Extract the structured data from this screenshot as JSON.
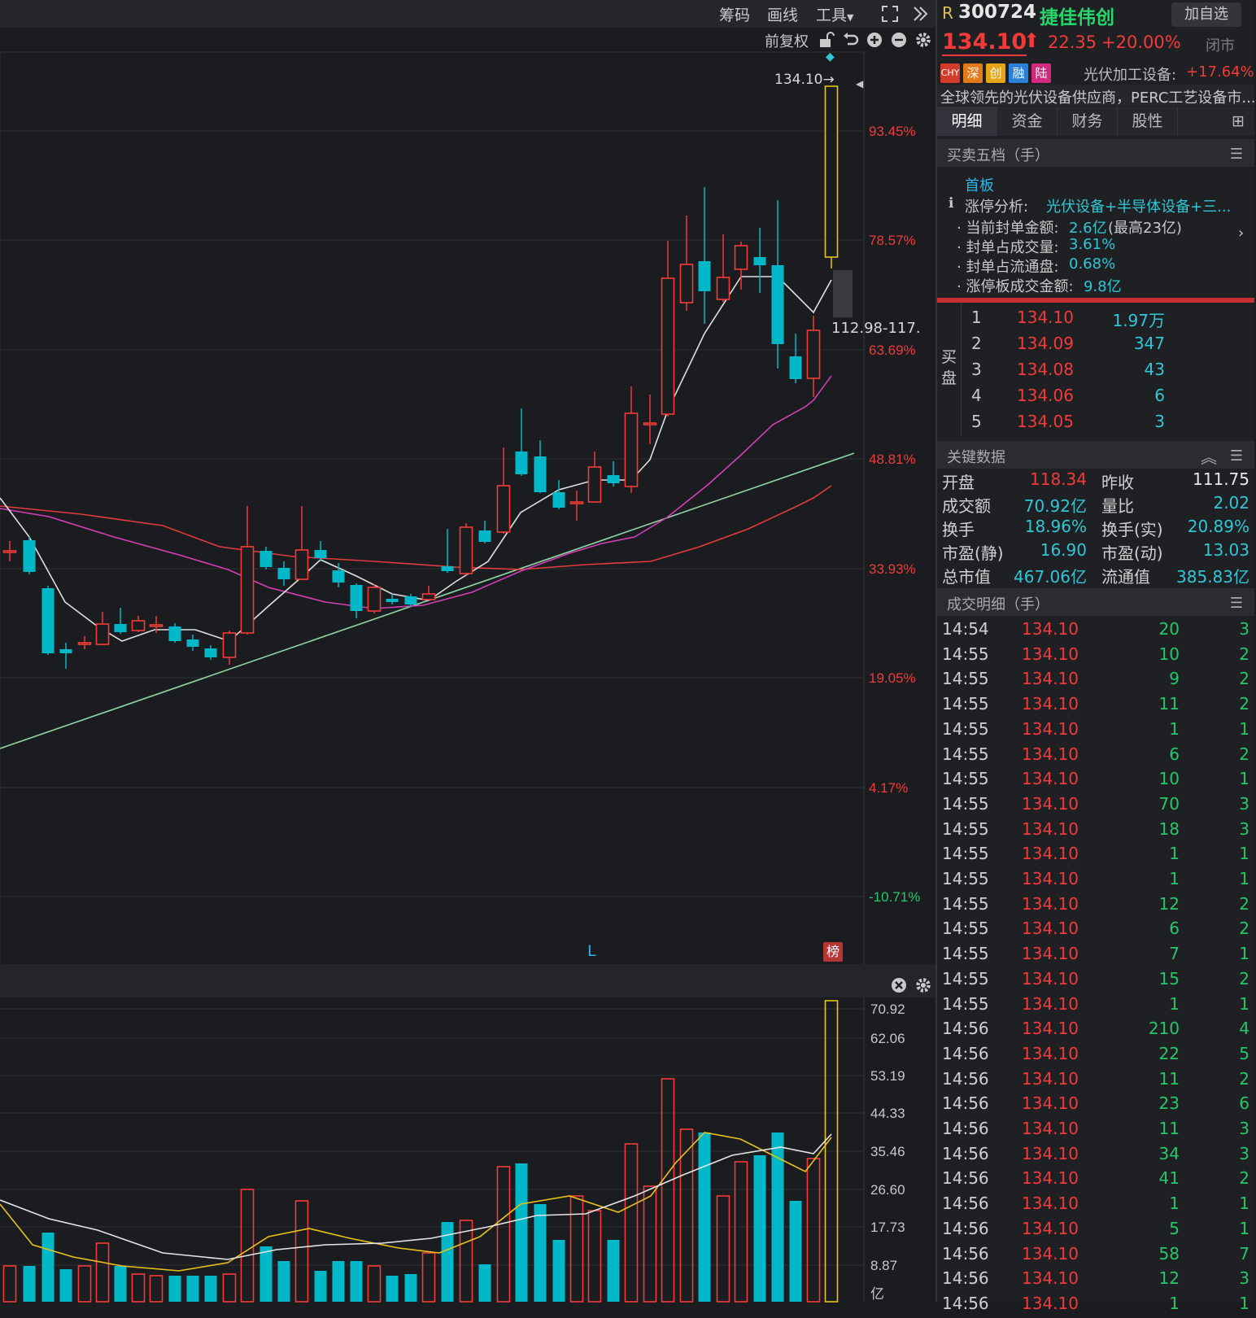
{
  "toolbar": {
    "chips": "筹码",
    "draw": "画线",
    "tools": "工具",
    "adjust": "前复权"
  },
  "chart": {
    "price_labels": [
      "93.45%",
      "78.57%",
      "63.69%",
      "48.81%",
      "33.93%",
      "19.05%",
      "4.17%",
      "-10.71%"
    ],
    "last_price_tag": "134.10→",
    "range_tag": "112.98-117.",
    "l_marker": "L",
    "bang_badge": "榜",
    "volume_labels": [
      "70.92",
      "62.06",
      "53.19",
      "44.33",
      "35.46",
      "26.60",
      "17.73",
      "8.87",
      "亿"
    ],
    "colors": {
      "up": "#f23a3a",
      "down": "#00b8c8",
      "limit_up": "#e8c21b",
      "ma5": "#e0e0e0",
      "ma10": "#d33fb5",
      "ma20": "#e23c3c",
      "trend": "#8fd6a6"
    }
  },
  "chart_data": {
    "type": "candlestick",
    "ylabels_pct": [
      "93.45%",
      "78.57%",
      "63.69%",
      "48.81%",
      "33.93%",
      "19.05%",
      "4.17%",
      "-10.71%"
    ],
    "last_close": 134.1,
    "volume_axis": [
      "70.92",
      "62.06",
      "53.19",
      "44.33",
      "35.46",
      "26.60",
      "17.73",
      "8.87"
    ],
    "volume_unit": "亿"
  },
  "quote": {
    "r_mark": "R",
    "code": "300724",
    "name": "捷佳伟创",
    "add_button": "加自选",
    "price": "134.10",
    "change": "22.35",
    "change_pct": "+20.00%",
    "market_status": "闭市",
    "badges": [
      "CHY",
      "深",
      "创",
      "融",
      "陆"
    ],
    "sector": "光伏加工设备:",
    "sector_pct": "+17.64%",
    "description": "全球领先的光伏设备供应商，PERC工艺设备市..."
  },
  "tabs": [
    "明细",
    "资金",
    "财务",
    "股性",
    "⊞"
  ],
  "orderbook": {
    "title": "买卖五档（手）",
    "board": "首板",
    "analysis_label": "涨停分析:",
    "analysis_value": "光伏设备+半导体设备+三...",
    "seal_amount_label": "· 当前封单金额:",
    "seal_amount_value": "2.6亿",
    "seal_amount_max": "(最高23亿)",
    "seal_vol_label": "· 封单占成交量:",
    "seal_vol_value": "3.61%",
    "seal_float_label": "· 封单占流通盘:",
    "seal_float_value": "0.68%",
    "limit_turnover_label": "· 涨停板成交金额:",
    "limit_turnover_value": "9.8亿",
    "buy_label": "买盘",
    "bids": [
      {
        "level": "1",
        "price": "134.10",
        "volume": "1.97万"
      },
      {
        "level": "2",
        "price": "134.09",
        "volume": "347"
      },
      {
        "level": "3",
        "price": "134.08",
        "volume": "43"
      },
      {
        "level": "4",
        "price": "134.06",
        "volume": "6"
      },
      {
        "level": "5",
        "price": "134.05",
        "volume": "3"
      }
    ]
  },
  "key_data": {
    "title": "关键数据",
    "rows": [
      {
        "l1": "开盘",
        "v1": "118.34",
        "c1": "red",
        "l2": "昨收",
        "v2": "111.75",
        "c2": "white"
      },
      {
        "l1": "成交额",
        "v1": "70.92亿",
        "c1": "cyan",
        "l2": "量比",
        "v2": "2.02",
        "c2": "cyan"
      },
      {
        "l1": "换手",
        "v1": "18.96%",
        "c1": "cyan",
        "l2": "换手(实)",
        "v2": "20.89%",
        "c2": "cyan"
      },
      {
        "l1": "市盈(静)",
        "v1": "16.90",
        "c1": "cyan",
        "l2": "市盈(动)",
        "v2": "13.03",
        "c2": "cyan"
      },
      {
        "l1": "总市值",
        "v1": "467.06亿",
        "c1": "cyan",
        "l2": "流通值",
        "v2": "385.83亿",
        "c2": "cyan"
      }
    ]
  },
  "trades": {
    "title": "成交明细（手）",
    "rows": [
      {
        "time": "14:54",
        "price": "134.10",
        "vol": "20",
        "n": "3"
      },
      {
        "time": "14:55",
        "price": "134.10",
        "vol": "10",
        "n": "2"
      },
      {
        "time": "14:55",
        "price": "134.10",
        "vol": "9",
        "n": "2"
      },
      {
        "time": "14:55",
        "price": "134.10",
        "vol": "11",
        "n": "2"
      },
      {
        "time": "14:55",
        "price": "134.10",
        "vol": "1",
        "n": "1"
      },
      {
        "time": "14:55",
        "price": "134.10",
        "vol": "6",
        "n": "2"
      },
      {
        "time": "14:55",
        "price": "134.10",
        "vol": "10",
        "n": "1"
      },
      {
        "time": "14:55",
        "price": "134.10",
        "vol": "70",
        "n": "3"
      },
      {
        "time": "14:55",
        "price": "134.10",
        "vol": "18",
        "n": "3"
      },
      {
        "time": "14:55",
        "price": "134.10",
        "vol": "1",
        "n": "1"
      },
      {
        "time": "14:55",
        "price": "134.10",
        "vol": "1",
        "n": "1"
      },
      {
        "time": "14:55",
        "price": "134.10",
        "vol": "12",
        "n": "2"
      },
      {
        "time": "14:55",
        "price": "134.10",
        "vol": "6",
        "n": "2"
      },
      {
        "time": "14:55",
        "price": "134.10",
        "vol": "7",
        "n": "1"
      },
      {
        "time": "14:55",
        "price": "134.10",
        "vol": "15",
        "n": "2"
      },
      {
        "time": "14:55",
        "price": "134.10",
        "vol": "1",
        "n": "1"
      },
      {
        "time": "14:56",
        "price": "134.10",
        "vol": "210",
        "n": "4"
      },
      {
        "time": "14:56",
        "price": "134.10",
        "vol": "22",
        "n": "5"
      },
      {
        "time": "14:56",
        "price": "134.10",
        "vol": "11",
        "n": "2"
      },
      {
        "time": "14:56",
        "price": "134.10",
        "vol": "23",
        "n": "6"
      },
      {
        "time": "14:56",
        "price": "134.10",
        "vol": "11",
        "n": "3"
      },
      {
        "time": "14:56",
        "price": "134.10",
        "vol": "34",
        "n": "3"
      },
      {
        "time": "14:56",
        "price": "134.10",
        "vol": "41",
        "n": "2"
      },
      {
        "time": "14:56",
        "price": "134.10",
        "vol": "1",
        "n": "1"
      },
      {
        "time": "14:56",
        "price": "134.10",
        "vol": "5",
        "n": "1"
      },
      {
        "time": "14:56",
        "price": "134.10",
        "vol": "58",
        "n": "7"
      },
      {
        "time": "14:56",
        "price": "134.10",
        "vol": "12",
        "n": "3"
      },
      {
        "time": "14:56",
        "price": "134.10",
        "vol": "1",
        "n": "1"
      }
    ]
  }
}
